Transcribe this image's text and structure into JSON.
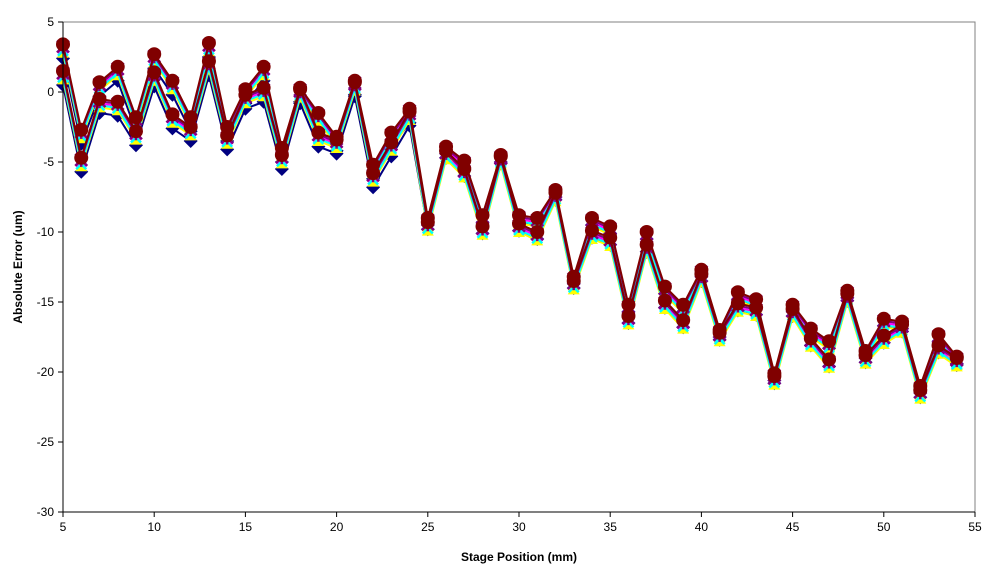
{
  "chart_data": {
    "type": "line",
    "title": "",
    "xlabel": "Stage Position (mm)",
    "ylabel": "Absolute Error (um)",
    "xlim": [
      5,
      55
    ],
    "ylim": [
      -30,
      5
    ],
    "xticks": [
      5,
      10,
      15,
      20,
      25,
      30,
      35,
      40,
      45,
      50,
      55
    ],
    "yticks": [
      5,
      0,
      -5,
      -10,
      -15,
      -20,
      -25,
      -30
    ],
    "grid": false,
    "legend": "none",
    "x": [
      5,
      6,
      7,
      8,
      9,
      10,
      11,
      12,
      13,
      14,
      15,
      16,
      17,
      18,
      19,
      20,
      21,
      22,
      23,
      24,
      25,
      26,
      27,
      28,
      29,
      30,
      31,
      32,
      33,
      34,
      35,
      36,
      37,
      38,
      39,
      40,
      41,
      42,
      43,
      44,
      45,
      46,
      47,
      48,
      49,
      50,
      51,
      52,
      53,
      54
    ],
    "series": [
      {
        "marker": "diamond",
        "color": "#000080",
        "forward": [
          2.4,
          -3.7,
          -0.3,
          0.8,
          -2.8,
          1.7,
          -0.2,
          -2.8,
          2.5,
          -3.5,
          -0.8,
          0.8,
          -5.0,
          -0.7,
          -2.5,
          -4.2,
          -0.2,
          -6.2,
          -3.9,
          -2.2,
          -9.5,
          -4.4,
          -5.4,
          -9.3,
          -5.0,
          -9.3,
          -9.5,
          -7.5,
          -13.7,
          -9.5,
          -10.1,
          -15.7,
          -10.5,
          -14.4,
          -15.7,
          -13.2,
          -17.5,
          -14.8,
          -15.3,
          -20.6,
          -15.7,
          -17.4,
          -18.3,
          -14.7,
          -19.0,
          -16.7,
          -16.9,
          -21.5,
          -17.8,
          -19.4
        ],
        "reverse": [
          0.5,
          -5.7,
          -1.5,
          -1.7,
          -3.8,
          0.4,
          -2.6,
          -3.5,
          1.2,
          -4.1,
          -1.2,
          -0.7,
          -5.5,
          -0.8,
          -3.9,
          -4.4,
          -0.3,
          -6.8,
          -4.6,
          -2.4,
          -9.8,
          -4.7,
          -6.0,
          -10.1,
          -5.1,
          -9.9,
          -10.5,
          -7.7,
          -14.0,
          -10.4,
          -10.9,
          -16.5,
          -11.4,
          -15.4,
          -16.8,
          -13.5,
          -17.7,
          -15.6,
          -15.9,
          -20.8,
          -16.0,
          -18.1,
          -19.6,
          -14.9,
          -19.3,
          -17.9,
          -17.1,
          -21.8,
          -18.6,
          -19.5
        ]
      },
      {
        "marker": "square",
        "color": "#FF00FF",
        "offset_from_last_um": -0.3
      },
      {
        "marker": "triangle",
        "color": "#FFFF00",
        "offset_from_last_um": -0.6
      },
      {
        "marker": "x",
        "color": "#00FFFF",
        "offset_from_last_um": -0.45
      },
      {
        "marker": "star",
        "color": "#800080",
        "offset_from_last_um": -0.15
      },
      {
        "marker": "circle",
        "color": "#800000",
        "forward": [
          3.4,
          -2.7,
          0.7,
          1.8,
          -1.8,
          2.7,
          0.8,
          -1.8,
          3.5,
          -2.5,
          0.2,
          1.8,
          -4.0,
          0.3,
          -1.5,
          -3.2,
          0.8,
          -5.2,
          -2.9,
          -1.2,
          -9.0,
          -3.9,
          -4.9,
          -8.8,
          -4.5,
          -8.8,
          -9.0,
          -7.0,
          -13.2,
          -9.0,
          -9.6,
          -15.2,
          -10.0,
          -13.9,
          -15.2,
          -12.7,
          -17.0,
          -14.3,
          -14.8,
          -20.1,
          -15.2,
          -16.9,
          -17.8,
          -14.2,
          -18.5,
          -16.2,
          -16.4,
          -21.0,
          -17.3,
          -18.9
        ],
        "reverse": [
          1.5,
          -4.7,
          -0.5,
          -0.7,
          -2.8,
          1.4,
          -1.6,
          -2.5,
          2.2,
          -3.1,
          -0.2,
          0.3,
          -4.5,
          0.2,
          -2.9,
          -3.4,
          0.7,
          -5.8,
          -3.6,
          -1.4,
          -9.3,
          -4.2,
          -5.5,
          -9.6,
          -4.6,
          -9.4,
          -10.0,
          -7.2,
          -13.5,
          -9.9,
          -10.4,
          -16.0,
          -10.9,
          -14.9,
          -16.3,
          -13.0,
          -17.2,
          -15.1,
          -15.4,
          -20.3,
          -15.5,
          -17.6,
          -19.1,
          -14.4,
          -18.8,
          -17.4,
          -16.6,
          -21.3,
          -18.1,
          -19.0
        ]
      }
    ]
  }
}
